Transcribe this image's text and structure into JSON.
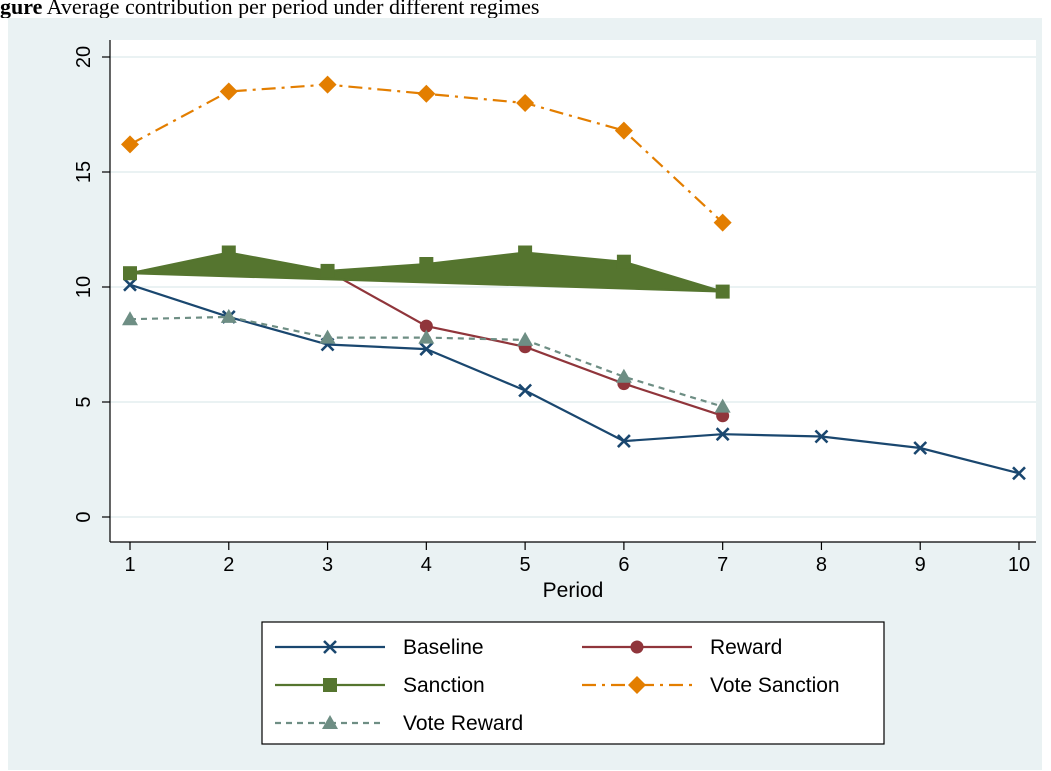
{
  "caption": {
    "label": "gure",
    "text": "Average contribution per period under different regimes"
  },
  "chart_data": {
    "type": "line",
    "title": "",
    "xlabel": "Period",
    "ylabel": "",
    "xlim": [
      1,
      10
    ],
    "ylim": [
      0,
      20
    ],
    "x_ticks": [
      1,
      2,
      3,
      4,
      5,
      6,
      7,
      8,
      9,
      10
    ],
    "y_ticks": [
      0,
      5,
      10,
      15,
      20
    ],
    "grid": "horizontal",
    "legend_placement": "bottom",
    "colors": {
      "plot_bg": "#ffffff",
      "outer_bg": "#eaf2f3",
      "grid": "#eaf2f3"
    },
    "series": [
      {
        "name": "Baseline",
        "color": "#1a476f",
        "marker": "x",
        "dash": "solid",
        "x": [
          1,
          2,
          3,
          4,
          5,
          6,
          7,
          8,
          9,
          10
        ],
        "y": [
          10.1,
          8.7,
          7.5,
          7.3,
          5.5,
          3.3,
          3.6,
          3.5,
          3.0,
          1.9
        ]
      },
      {
        "name": "Reward",
        "color": "#90353b",
        "marker": "circle",
        "dash": "solid",
        "x": [
          1,
          2,
          3,
          4,
          5,
          6,
          7
        ],
        "y": [
          10.6,
          11.4,
          10.7,
          8.3,
          7.4,
          5.8,
          4.4
        ]
      },
      {
        "name": "Sanction",
        "color": "#55752f",
        "marker": "square",
        "dash": "solid",
        "filled": true,
        "x": [
          1,
          2,
          3,
          4,
          5,
          6,
          7
        ],
        "y": [
          10.6,
          11.5,
          10.7,
          11.0,
          11.5,
          11.1,
          9.8
        ]
      },
      {
        "name": "Vote Sanction",
        "color": "#e37e00",
        "marker": "diamond",
        "dash": "dashdot",
        "x": [
          1,
          2,
          3,
          4,
          5,
          6,
          7
        ],
        "y": [
          16.2,
          18.5,
          18.8,
          18.4,
          18.0,
          16.8,
          12.8
        ]
      },
      {
        "name": "Vote Reward",
        "color": "#6e8e84",
        "marker": "triangle",
        "dash": "dash",
        "x": [
          1,
          2,
          3,
          4,
          5,
          6,
          7
        ],
        "y": [
          8.6,
          8.7,
          7.8,
          7.8,
          7.7,
          6.1,
          4.8
        ]
      }
    ]
  }
}
